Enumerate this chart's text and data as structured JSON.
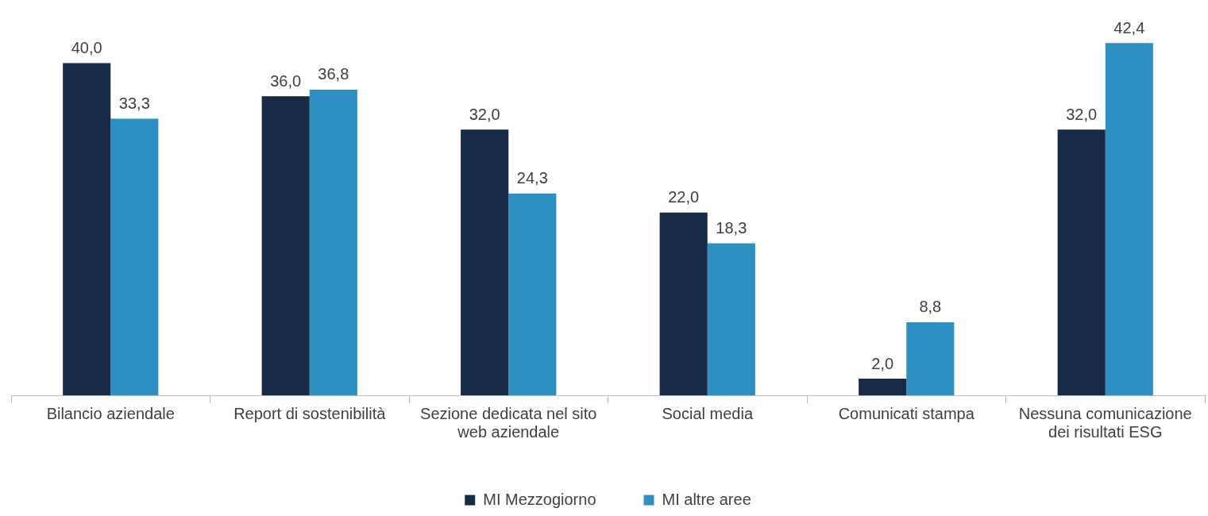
{
  "chart_data": {
    "type": "bar",
    "categories": [
      "Bilancio aziendale",
      "Report di sostenibilità",
      "Sezione dedicata nel sito web aziendale",
      "Social media",
      "Comunicati stampa",
      "Nessuna comunicazione dei risultati ESG"
    ],
    "series": [
      {
        "name": "MI Mezzogiorno",
        "color": "#172a46",
        "values": [
          40.0,
          36.0,
          32.0,
          22.0,
          2.0,
          32.0
        ],
        "value_labels": [
          "40,0",
          "36,0",
          "32,0",
          "22,0",
          "2,0",
          "32,0"
        ]
      },
      {
        "name": "MI altre aree",
        "color": "#2e90c2",
        "values": [
          33.3,
          36.8,
          24.3,
          18.3,
          8.8,
          42.4
        ],
        "value_labels": [
          "33,3",
          "36,8",
          "24,3",
          "18,3",
          "8,8",
          "42,4"
        ]
      }
    ],
    "legend": "bottom"
  }
}
